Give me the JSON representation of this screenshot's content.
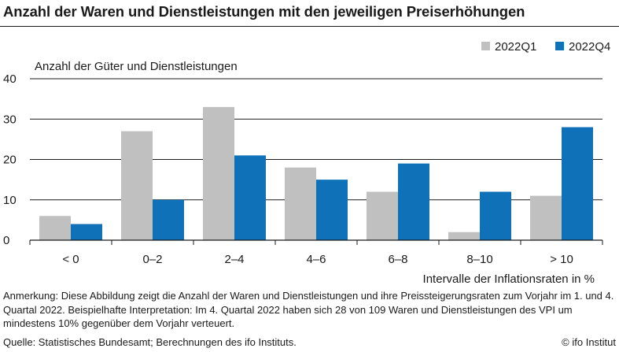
{
  "title": "Anzahl der Waren und Dienstleistungen mit den jeweiligen Preiserhöhungen",
  "chart_data": {
    "type": "bar",
    "ylabel": "Anzahl der Güter und Dienstleistungen",
    "xlabel": "Intervalle der Inflationsraten in %",
    "categories": [
      "< 0",
      "0–2",
      "2–4",
      "4–6",
      "6–8",
      "8–10",
      "> 10"
    ],
    "series": [
      {
        "name": "2022Q1",
        "color": "#c0c0c0",
        "values": [
          6,
          27,
          33,
          18,
          12,
          2,
          11
        ]
      },
      {
        "name": "2022Q4",
        "color": "#0f72b9",
        "values": [
          4,
          10,
          21,
          15,
          19,
          12,
          28
        ]
      }
    ],
    "ylim": [
      0,
      40
    ],
    "yticks": [
      0,
      10,
      20,
      30,
      40
    ],
    "grid": true,
    "legend": "top-right"
  },
  "note": "Anmerkung: Diese Abbildung zeigt die Anzahl der Waren und Dienstleistungen und ihre Preissteigerungsraten zum Vorjahr im 1. und 4. Quartal 2022. Beispielhafte Interpretation: Im 4. Quartal 2022 haben sich 28 von 109 Waren und Dienstleistungen des VPI um mindestens 10% gegenüber dem Vorjahr verteuert.",
  "source": "Quelle: Statistisches Bundesamt; Berechnungen des ifo Instituts.",
  "brand": "© ifo Institut"
}
